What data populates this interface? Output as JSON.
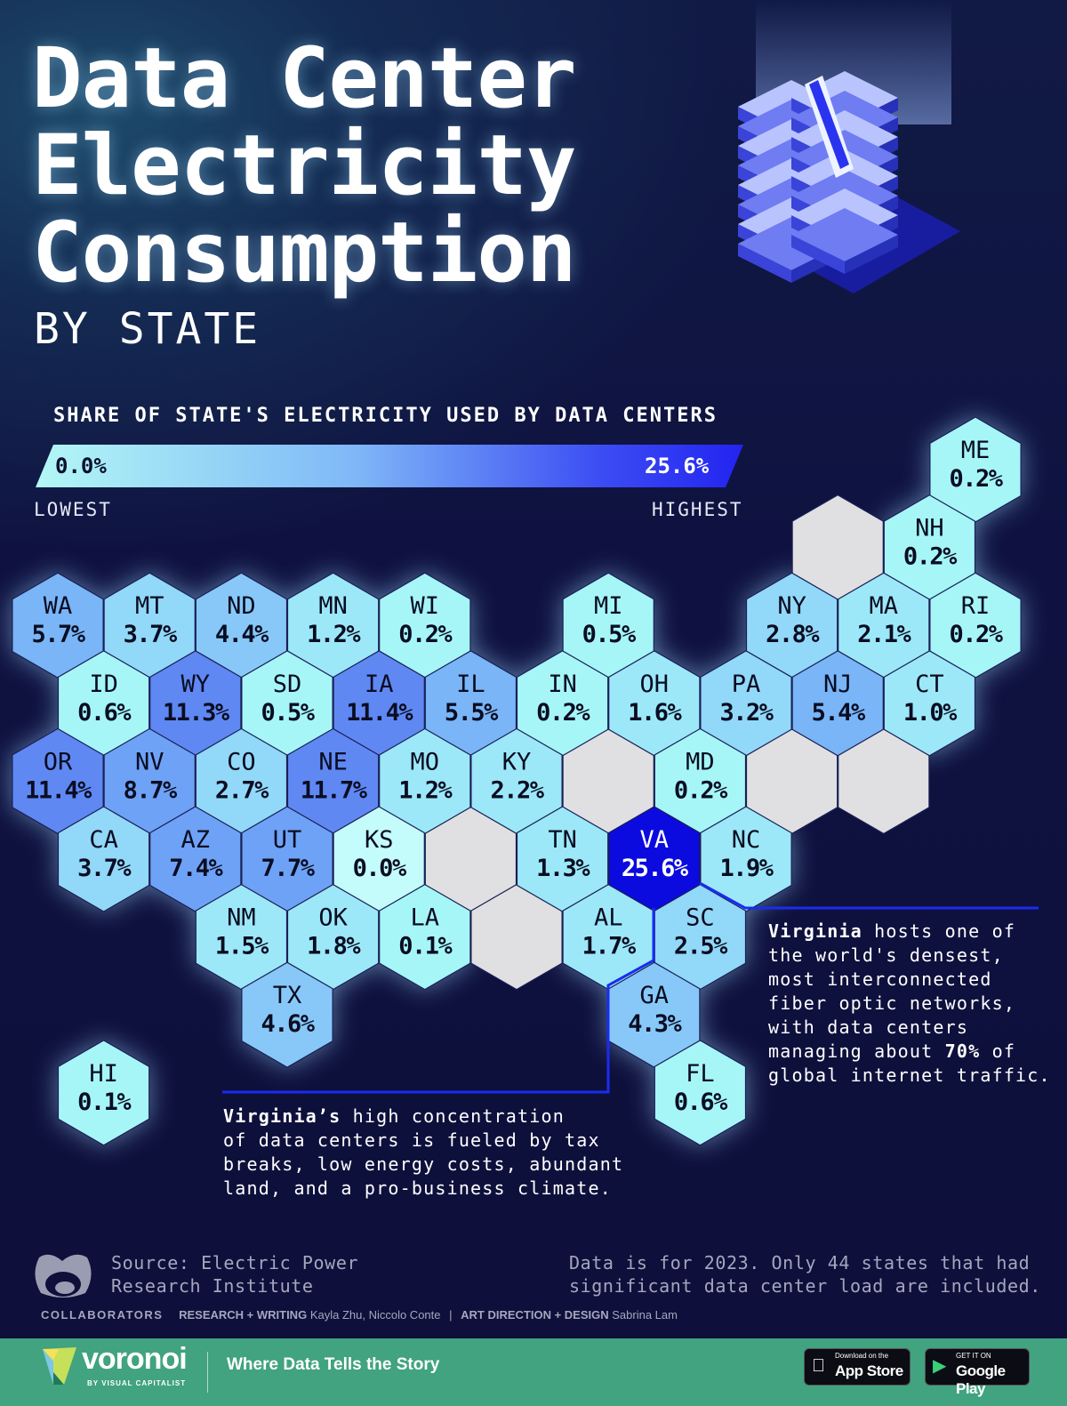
{
  "title": {
    "line1": "Data Center",
    "line2": "Electricity",
    "line3": "Consumption",
    "subtitle": "BY STATE"
  },
  "legend": {
    "title": "SHARE OF STATE'S ELECTRICITY USED BY DATA CENTERS",
    "min": "0.0%",
    "max": "25.6%",
    "low_label": "LOWEST",
    "high_label": "HIGHEST",
    "color_low": "#a6f6f8",
    "color_high": "#0b0be0"
  },
  "states": [
    {
      "code": "ME",
      "value": "0.2%"
    },
    {
      "code": "NH",
      "value": "0.2%"
    },
    {
      "code": "WA",
      "value": "5.7%"
    },
    {
      "code": "MT",
      "value": "3.7%"
    },
    {
      "code": "ND",
      "value": "4.4%"
    },
    {
      "code": "MN",
      "value": "1.2%"
    },
    {
      "code": "WI",
      "value": "0.2%"
    },
    {
      "code": "MI",
      "value": "0.5%"
    },
    {
      "code": "NY",
      "value": "2.8%"
    },
    {
      "code": "MA",
      "value": "2.1%"
    },
    {
      "code": "RI",
      "value": "0.2%"
    },
    {
      "code": "ID",
      "value": "0.6%"
    },
    {
      "code": "WY",
      "value": "11.3%"
    },
    {
      "code": "SD",
      "value": "0.5%"
    },
    {
      "code": "IA",
      "value": "11.4%"
    },
    {
      "code": "IL",
      "value": "5.5%"
    },
    {
      "code": "IN",
      "value": "0.2%"
    },
    {
      "code": "OH",
      "value": "1.6%"
    },
    {
      "code": "PA",
      "value": "3.2%"
    },
    {
      "code": "NJ",
      "value": "5.4%"
    },
    {
      "code": "CT",
      "value": "1.0%"
    },
    {
      "code": "OR",
      "value": "11.4%"
    },
    {
      "code": "NV",
      "value": "8.7%"
    },
    {
      "code": "CO",
      "value": "2.7%"
    },
    {
      "code": "NE",
      "value": "11.7%"
    },
    {
      "code": "MO",
      "value": "1.2%"
    },
    {
      "code": "KY",
      "value": "2.2%"
    },
    {
      "code": "MD",
      "value": "0.2%"
    },
    {
      "code": "CA",
      "value": "3.7%"
    },
    {
      "code": "AZ",
      "value": "7.4%"
    },
    {
      "code": "UT",
      "value": "7.7%"
    },
    {
      "code": "KS",
      "value": "0.0%"
    },
    {
      "code": "TN",
      "value": "1.3%"
    },
    {
      "code": "VA",
      "value": "25.6%"
    },
    {
      "code": "NC",
      "value": "1.9%"
    },
    {
      "code": "NM",
      "value": "1.5%"
    },
    {
      "code": "OK",
      "value": "1.8%"
    },
    {
      "code": "LA",
      "value": "0.1%"
    },
    {
      "code": "AL",
      "value": "1.7%"
    },
    {
      "code": "SC",
      "value": "2.5%"
    },
    {
      "code": "TX",
      "value": "4.6%"
    },
    {
      "code": "GA",
      "value": "4.3%"
    },
    {
      "code": "HI",
      "value": "0.1%"
    },
    {
      "code": "FL",
      "value": "0.6%"
    }
  ],
  "no_data_color": "#e0e0e2",
  "annotations": {
    "right": {
      "bold": "Virginia",
      "text": " hosts one of\nthe world's densest,\nmost interconnected\nfiber optic networks,\nwith data centers\nmanaging about ",
      "bold2": "70%",
      "text2": " of\nglobal internet traffic."
    },
    "left": {
      "bold": "Virginia’s",
      "text": " high concentration\nof data centers is fueled by tax\nbreaks, low energy costs, abundant\nland, and a pro-business climate."
    },
    "line_color": "#1a2cf0"
  },
  "source": "Source: Electric Power\nResearch Institute",
  "disclaimer": "Data is for 2023. Only 44 states that had\nsignificant data center load are included.",
  "credits": {
    "heading": "COLLABORATORS",
    "role1": "RESEARCH + WRITING",
    "names1": "Kayla Zhu, Niccolo Conte",
    "sep": "|",
    "role2": "ART DIRECTION + DESIGN",
    "names2": "Sabrina Lam"
  },
  "footer": {
    "brand": "voronoi",
    "brand_sub": "BY VISUAL CAPITALIST",
    "tagline": "Where Data Tells the Story",
    "appstore_small": "Download on the",
    "appstore": "App Store",
    "play_small": "GET IT ON",
    "play": "Google Play",
    "color": "#41a37f"
  }
}
